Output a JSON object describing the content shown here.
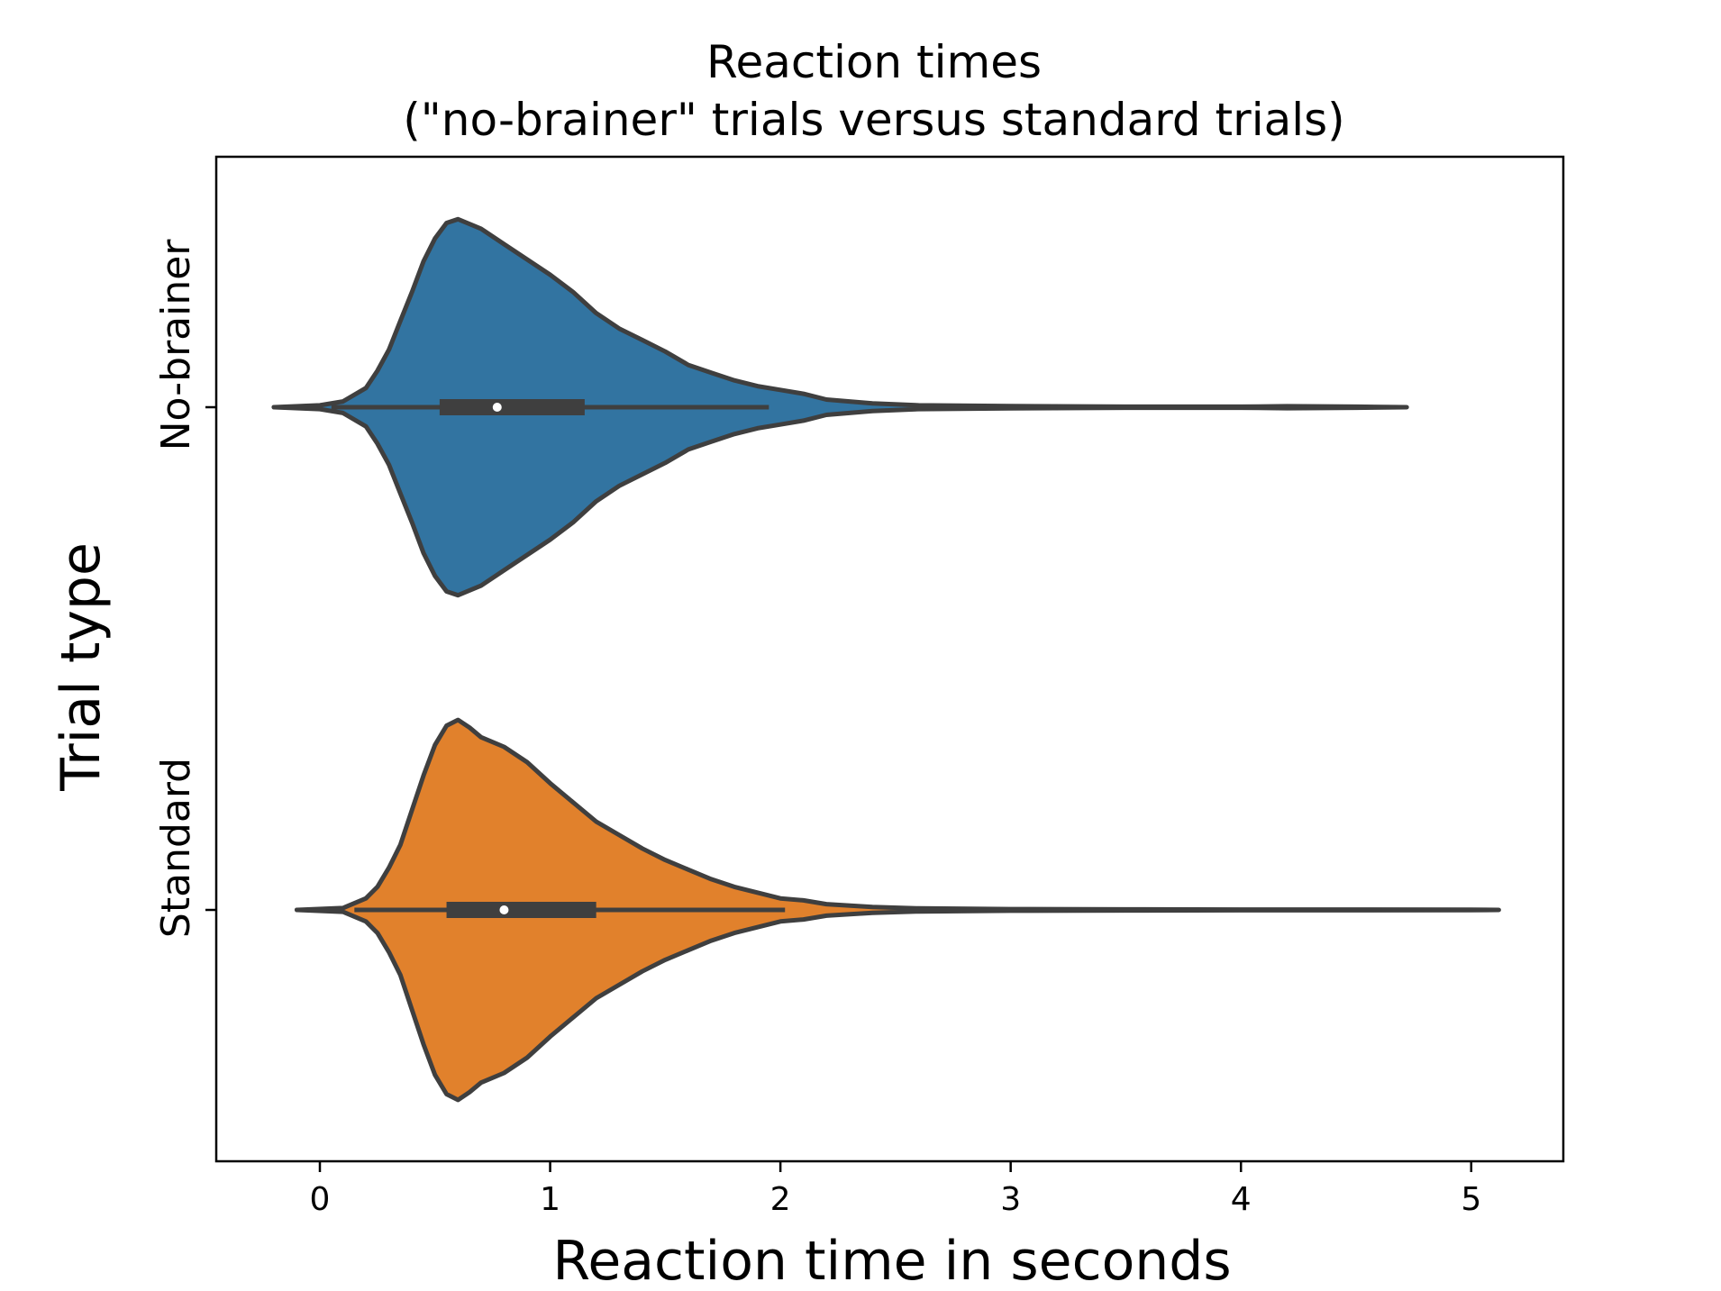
{
  "chart_data": {
    "type": "violin",
    "orientation": "horizontal",
    "title_lines": [
      "Reaction times",
      "(\"no-brainer\" trials versus standard trials)"
    ],
    "xlabel": "Reaction time in seconds",
    "ylabel": "Trial type",
    "xlim": [
      -0.45,
      5.4
    ],
    "xticks": [
      0,
      1,
      2,
      3,
      4,
      5
    ],
    "xtick_labels": [
      "0",
      "1",
      "2",
      "3",
      "4",
      "5"
    ],
    "grid": false,
    "legend": "none",
    "categories": [
      "No-brainer",
      "Standard"
    ],
    "series": [
      {
        "category": "No-brainer",
        "color": "#3274a1",
        "edge_color": "#3f3f3f",
        "box": {
          "whisker_low": 0.05,
          "q1": 0.52,
          "median": 0.77,
          "q3": 1.15,
          "whisker_high": 1.95
        },
        "density": [
          [
            -0.2,
            0.0
          ],
          [
            0.0,
            0.01
          ],
          [
            0.1,
            0.03
          ],
          [
            0.2,
            0.1
          ],
          [
            0.25,
            0.19
          ],
          [
            0.3,
            0.3
          ],
          [
            0.35,
            0.45
          ],
          [
            0.4,
            0.6
          ],
          [
            0.45,
            0.76
          ],
          [
            0.5,
            0.88
          ],
          [
            0.55,
            0.96
          ],
          [
            0.6,
            0.98
          ],
          [
            0.7,
            0.93
          ],
          [
            0.8,
            0.85
          ],
          [
            0.9,
            0.77
          ],
          [
            1.0,
            0.69
          ],
          [
            1.1,
            0.6
          ],
          [
            1.2,
            0.49
          ],
          [
            1.3,
            0.41
          ],
          [
            1.4,
            0.35
          ],
          [
            1.5,
            0.29
          ],
          [
            1.6,
            0.22
          ],
          [
            1.7,
            0.18
          ],
          [
            1.8,
            0.14
          ],
          [
            1.9,
            0.11
          ],
          [
            2.0,
            0.09
          ],
          [
            2.1,
            0.07
          ],
          [
            2.2,
            0.04
          ],
          [
            2.4,
            0.02
          ],
          [
            2.6,
            0.01
          ],
          [
            3.0,
            0.006
          ],
          [
            3.5,
            0.003
          ],
          [
            4.0,
            0.003
          ],
          [
            4.2,
            0.005
          ],
          [
            4.5,
            0.003
          ],
          [
            4.72,
            0.0
          ]
        ]
      },
      {
        "category": "Standard",
        "color": "#e1812c",
        "edge_color": "#3f3f3f",
        "box": {
          "whisker_low": 0.15,
          "q1": 0.55,
          "median": 0.8,
          "q3": 1.2,
          "whisker_high": 2.02
        },
        "density": [
          [
            -0.1,
            0.0
          ],
          [
            0.1,
            0.01
          ],
          [
            0.2,
            0.06
          ],
          [
            0.25,
            0.12
          ],
          [
            0.3,
            0.22
          ],
          [
            0.35,
            0.34
          ],
          [
            0.4,
            0.52
          ],
          [
            0.45,
            0.7
          ],
          [
            0.5,
            0.86
          ],
          [
            0.55,
            0.96
          ],
          [
            0.6,
            0.99
          ],
          [
            0.65,
            0.95
          ],
          [
            0.7,
            0.9
          ],
          [
            0.8,
            0.85
          ],
          [
            0.9,
            0.77
          ],
          [
            1.0,
            0.66
          ],
          [
            1.1,
            0.56
          ],
          [
            1.2,
            0.46
          ],
          [
            1.3,
            0.39
          ],
          [
            1.4,
            0.32
          ],
          [
            1.5,
            0.26
          ],
          [
            1.6,
            0.21
          ],
          [
            1.7,
            0.16
          ],
          [
            1.8,
            0.12
          ],
          [
            1.9,
            0.09
          ],
          [
            2.0,
            0.06
          ],
          [
            2.1,
            0.05
          ],
          [
            2.2,
            0.03
          ],
          [
            2.4,
            0.015
          ],
          [
            2.6,
            0.008
          ],
          [
            3.0,
            0.004
          ],
          [
            3.5,
            0.003
          ],
          [
            4.0,
            0.002
          ],
          [
            4.5,
            0.002
          ],
          [
            5.0,
            0.001
          ],
          [
            5.12,
            0.0
          ]
        ]
      }
    ]
  }
}
